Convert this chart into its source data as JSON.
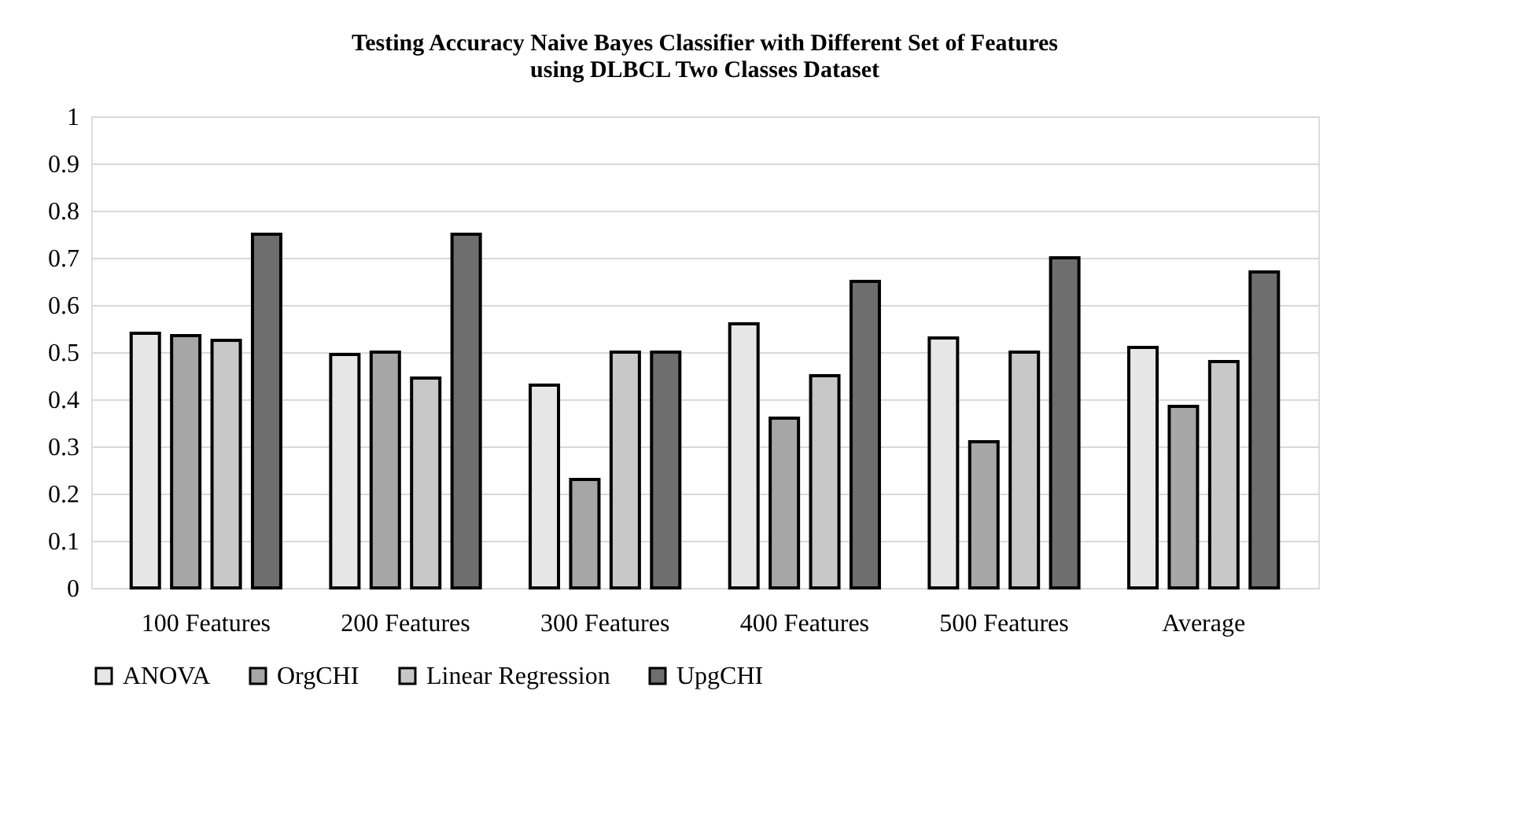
{
  "chart_data": {
    "type": "bar",
    "title": "Testing Accuracy Naive Bayes Classifier with Different Set of Features\nusing DLBCL Two Classes Dataset",
    "categories": [
      "100 Features",
      "200 Features",
      "300 Features",
      "400 Features",
      "500 Features",
      "Average"
    ],
    "series": [
      {
        "name": "ANOVA",
        "color": "#e6e6e6",
        "values": [
          0.54,
          0.495,
          0.43,
          0.56,
          0.53,
          0.51
        ]
      },
      {
        "name": "OrgCHI",
        "color": "#a6a6a6",
        "values": [
          0.535,
          0.5,
          0.23,
          0.36,
          0.31,
          0.385
        ]
      },
      {
        "name": "Linear Regression",
        "color": "#c8c8c8",
        "values": [
          0.525,
          0.445,
          0.5,
          0.45,
          0.5,
          0.48
        ]
      },
      {
        "name": "UpgCHI",
        "color": "#6e6e6e",
        "values": [
          0.75,
          0.75,
          0.5,
          0.65,
          0.7,
          0.67
        ]
      }
    ],
    "ylim": [
      0,
      1
    ],
    "yticks": [
      0,
      0.1,
      0.2,
      0.3,
      0.4,
      0.5,
      0.6,
      0.7,
      0.8,
      0.9,
      1
    ],
    "grid": "y",
    "legend": "bottom"
  }
}
